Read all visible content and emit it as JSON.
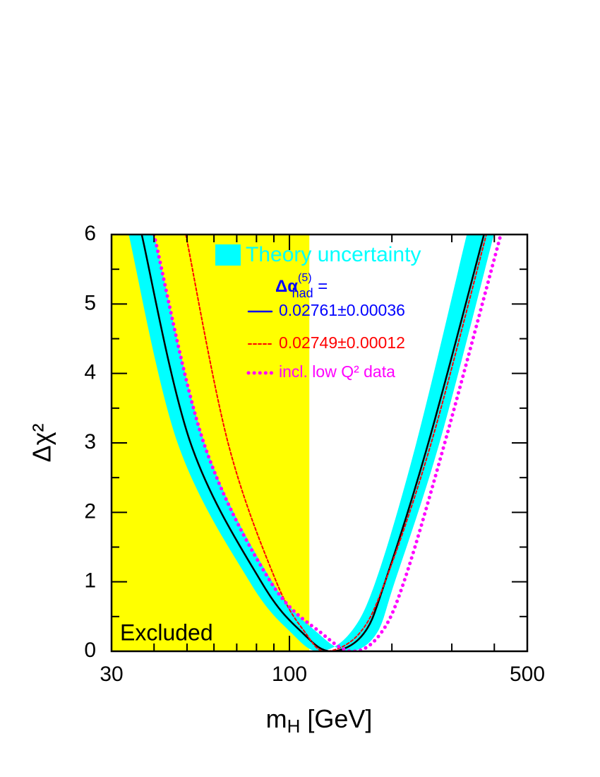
{
  "chart_data": {
    "type": "line",
    "xlabel": {
      "text": "m",
      "sub": "H",
      "rest": " [GeV]"
    },
    "ylabel": "Δχ²",
    "xscale": "log",
    "xlim": [
      30,
      500
    ],
    "ylim": [
      0,
      6
    ],
    "xticks": [
      30,
      100,
      500
    ],
    "xminorticks": [
      40,
      50,
      60,
      70,
      80,
      90,
      200,
      300,
      400
    ],
    "yticks": [
      0,
      1,
      2,
      3,
      4,
      5,
      6
    ],
    "yminorticks": [
      0.5,
      1.5,
      2.5,
      3.5,
      4.5,
      5.5
    ],
    "excluded": {
      "label": "Excluded",
      "xmax": 114.4,
      "color": "#ffff00"
    },
    "band": {
      "name": "Theory uncertainty",
      "color": "#00ffff",
      "upper": {
        "x": [
          33.7,
          46.9,
          76.4,
          102,
          122,
          150,
          179,
          236,
          332
        ],
        "values": [
          6,
          3,
          1,
          0.25,
          0,
          0.25,
          1,
          3,
          6
        ]
      },
      "lower": {
        "x": [
          40,
          56.3,
          89,
          122,
          150,
          180,
          204,
          276,
          399
        ],
        "values": [
          6,
          3,
          1,
          0.25,
          0,
          0.25,
          1,
          3,
          6
        ]
      }
    },
    "legend_heading": {
      "text": "Δα",
      "sub": "had",
      "sup": "(5)",
      "rest": " ="
    },
    "series": [
      {
        "name": "0.02761±0.00036",
        "color": "#000000",
        "legend_color": "#0000ff",
        "style": "solid",
        "x": [
          36.8,
          51.2,
          82.6,
          110,
          133,
          165,
          191,
          256,
          373
        ],
        "values": [
          6,
          3,
          1,
          0.25,
          0,
          0.25,
          1,
          3,
          6
        ]
      },
      {
        "name": "0.02749±0.00012",
        "color": "#ff0000",
        "legend_color": "#ff0000",
        "style": "dashed",
        "x": [
          49.6,
          66,
          91.5,
          112,
          128,
          160,
          191,
          261,
          379
        ],
        "values": [
          6,
          3,
          1,
          0.25,
          0,
          0.25,
          1,
          3,
          6
        ]
      },
      {
        "name": "incl. low Q² data",
        "color": "#ff00ff",
        "legend_color": "#ff00ff",
        "style": "dotted",
        "x": [
          40,
          56,
          88,
          125,
          154,
          185,
          217,
          286,
          418
        ],
        "values": [
          6,
          3,
          1,
          0.25,
          0,
          0.25,
          1,
          3,
          6
        ]
      }
    ]
  }
}
